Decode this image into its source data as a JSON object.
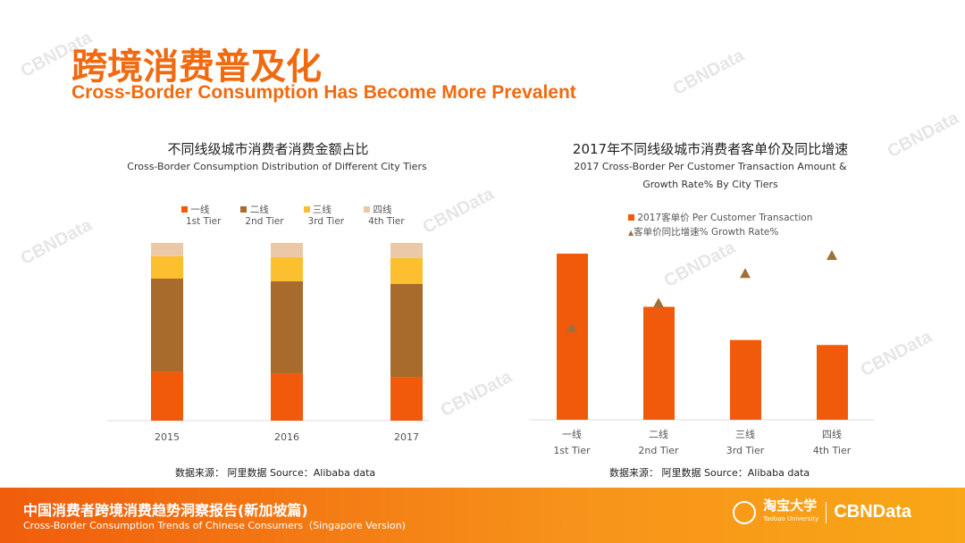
{
  "header": {
    "title_cn": "跨境消费普及化",
    "title_en": "Cross-Border Consumption Has Become More Prevalent"
  },
  "watermark": "CBNData",
  "colors": {
    "tier1": "#f05a0a",
    "tier2": "#a86b2c",
    "tier3": "#fbbf2f",
    "tier4": "#ecc9a6",
    "triangle": "#a0703a",
    "accent": "#f06a10"
  },
  "chart_data": [
    {
      "type": "bar",
      "stacked": true,
      "title": "不同线级城市消费者消费金额占比",
      "subtitle": "Cross-Border Consumption Distribution of Different City Tiers",
      "categories": [
        "2015",
        "2016",
        "2017"
      ],
      "ylim": [
        0,
        100
      ],
      "grid": false,
      "legend_position": "top",
      "series": [
        {
          "name": "一线 1st Tier",
          "label_cn": "一线",
          "label_en": "1st Tier",
          "values": [
            27.6,
            26.6,
            24.6
          ]
        },
        {
          "name": "二线 2nd Tier",
          "label_cn": "二线",
          "label_en": "2nd Tier",
          "values": [
            52.3,
            51.8,
            52.3
          ]
        },
        {
          "name": "三线 3rd Tier",
          "label_cn": "三线",
          "label_en": "3rd Tier",
          "values": [
            12.6,
            13.6,
            14.6
          ]
        },
        {
          "name": "四线 4th Tier",
          "label_cn": "四线",
          "label_en": "4th Tier",
          "values": [
            7.5,
            8.0,
            8.5
          ]
        }
      ],
      "source": "数据来源： 阿里数据  Source：Alibaba data"
    },
    {
      "type": "bar",
      "title": "2017年不同线级城市消费者客单价及同比增速",
      "subtitle_lines": [
        "2017 Cross-Border Per Customer Transaction Amount &",
        "Growth Rate% By City Tiers"
      ],
      "categories": [
        {
          "cn": "一线",
          "en": "1st Tier"
        },
        {
          "cn": "二线",
          "en": "2nd Tier"
        },
        {
          "cn": "三线",
          "en": "3rd Tier"
        },
        {
          "cn": "四线",
          "en": "4th Tier"
        }
      ],
      "grid": false,
      "legend_position": "top",
      "series": [
        {
          "name": "2017客单价 Per Customer Transaction",
          "kind": "bar",
          "values": [
            100,
            68,
            48,
            45
          ]
        },
        {
          "name": "客单价同比增速% Growth Rate%",
          "kind": "triangle-marker",
          "values": [
            56,
            71,
            89,
            100
          ]
        }
      ],
      "source": "数据来源： 阿里数据  Source：Alibaba data"
    }
  ],
  "footer": {
    "title_cn": "中国消费者跨境消费趋势洞察报告(新加坡篇)",
    "title_en": "Cross-Border Consumption Trends of Chinese Consumers（Singapore Version)",
    "logo1_cn": "淘宝大学",
    "logo1_en": "Taobao University",
    "logo2": "CBNData"
  }
}
